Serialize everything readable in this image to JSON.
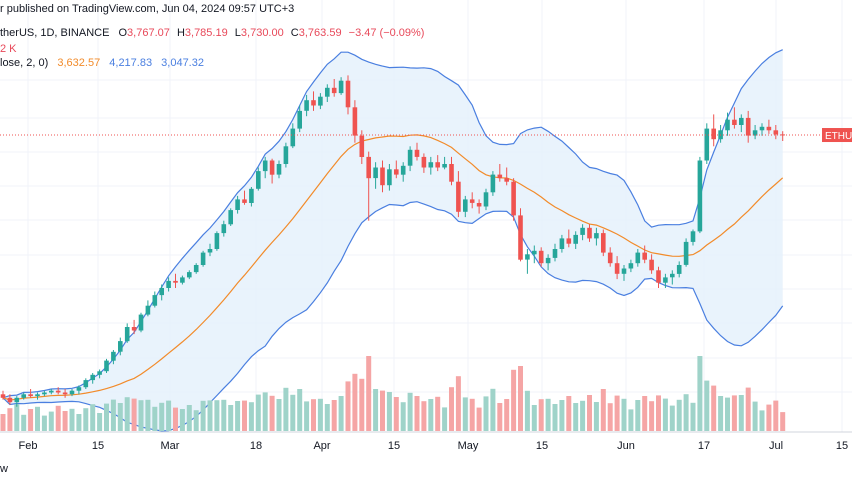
{
  "header": {
    "published": "r published on TradingView.com, Jun 04, 2024 09:57 UTC+3",
    "symbol_line": "therUS, 1D, BINANCE",
    "ohlc": {
      "o_label": "O",
      "o": "3,767.07",
      "h_label": "H",
      "h": "3,785.19",
      "l_label": "L",
      "l": "3,730.00",
      "c_label": "C",
      "c": "3,763.59",
      "chg": "−3.47 (−0.09%)"
    },
    "vol_value": "2 K",
    "bb_line": "lose, 2, 0)",
    "bb_values": {
      "basis": "3,632.57",
      "upper": "4,217.83",
      "lower": "3,047.32"
    }
  },
  "price_label": "ETHUS",
  "footer": "w",
  "colors": {
    "up": "#26a69a",
    "down": "#ef5350",
    "basis": "#f28b2a",
    "band": "#4a7fe0",
    "fill": "#e3f0fb",
    "vol_up": "#9fd3c9",
    "vol_down": "#f5a5a5"
  },
  "chart_data": {
    "type": "candlestick",
    "x_tick_labels": [
      "Feb",
      "15",
      "Mar",
      "18",
      "Apr",
      "15",
      "May",
      "15",
      "Jun",
      "17",
      "Jul",
      "15"
    ],
    "candles": [
      [
        2300,
        2320,
        2270,
        2280
      ],
      [
        2280,
        2300,
        2240,
        2255
      ],
      [
        2255,
        2290,
        2230,
        2280
      ],
      [
        2280,
        2310,
        2270,
        2300
      ],
      [
        2300,
        2330,
        2280,
        2290
      ],
      [
        2290,
        2310,
        2270,
        2300
      ],
      [
        2300,
        2320,
        2290,
        2310
      ],
      [
        2310,
        2330,
        2300,
        2320
      ],
      [
        2320,
        2340,
        2300,
        2310
      ],
      [
        2310,
        2330,
        2280,
        2300
      ],
      [
        2300,
        2330,
        2290,
        2320
      ],
      [
        2320,
        2350,
        2300,
        2340
      ],
      [
        2340,
        2390,
        2330,
        2380
      ],
      [
        2380,
        2420,
        2360,
        2410
      ],
      [
        2410,
        2440,
        2390,
        2430
      ],
      [
        2430,
        2500,
        2420,
        2490
      ],
      [
        2490,
        2550,
        2470,
        2540
      ],
      [
        2540,
        2620,
        2520,
        2600
      ],
      [
        2600,
        2700,
        2590,
        2680
      ],
      [
        2680,
        2720,
        2640,
        2660
      ],
      [
        2660,
        2760,
        2650,
        2750
      ],
      [
        2750,
        2830,
        2740,
        2800
      ],
      [
        2800,
        2880,
        2790,
        2860
      ],
      [
        2860,
        2920,
        2830,
        2900
      ],
      [
        2900,
        2960,
        2880,
        2940
      ],
      [
        2940,
        2980,
        2900,
        2930
      ],
      [
        2930,
        2970,
        2920,
        2960
      ],
      [
        2960,
        3000,
        2950,
        2990
      ],
      [
        2990,
        3040,
        2980,
        3030
      ],
      [
        3030,
        3110,
        3020,
        3100
      ],
      [
        3100,
        3150,
        3080,
        3120
      ],
      [
        3120,
        3220,
        3110,
        3210
      ],
      [
        3210,
        3280,
        3190,
        3260
      ],
      [
        3260,
        3350,
        3250,
        3340
      ],
      [
        3340,
        3420,
        3320,
        3400
      ],
      [
        3400,
        3450,
        3370,
        3380
      ],
      [
        3380,
        3470,
        3360,
        3460
      ],
      [
        3460,
        3580,
        3450,
        3560
      ],
      [
        3560,
        3640,
        3520,
        3620
      ],
      [
        3620,
        3630,
        3490,
        3540
      ],
      [
        3540,
        3620,
        3520,
        3600
      ],
      [
        3600,
        3720,
        3580,
        3700
      ],
      [
        3700,
        3830,
        3690,
        3800
      ],
      [
        3800,
        3930,
        3780,
        3900
      ],
      [
        3900,
        3990,
        3870,
        3960
      ],
      [
        3960,
        4010,
        3900,
        3930
      ],
      [
        3930,
        4000,
        3910,
        3980
      ],
      [
        3980,
        4050,
        3950,
        4030
      ],
      [
        4030,
        4080,
        3980,
        4000
      ],
      [
        4000,
        4090,
        3990,
        4070
      ],
      [
        4070,
        4100,
        3880,
        3920
      ],
      [
        3920,
        3960,
        3720,
        3760
      ],
      [
        3760,
        3790,
        3600,
        3640
      ],
      [
        3640,
        3670,
        3280,
        3520
      ],
      [
        3520,
        3610,
        3460,
        3580
      ],
      [
        3580,
        3620,
        3440,
        3480
      ],
      [
        3480,
        3600,
        3450,
        3570
      ],
      [
        3570,
        3620,
        3520,
        3540
      ],
      [
        3540,
        3610,
        3500,
        3590
      ],
      [
        3590,
        3700,
        3560,
        3680
      ],
      [
        3680,
        3720,
        3620,
        3640
      ],
      [
        3640,
        3660,
        3550,
        3580
      ],
      [
        3580,
        3640,
        3540,
        3610
      ],
      [
        3610,
        3650,
        3560,
        3580
      ],
      [
        3580,
        3640,
        3570,
        3600
      ],
      [
        3600,
        3640,
        3480,
        3500
      ],
      [
        3500,
        3560,
        3300,
        3330
      ],
      [
        3330,
        3420,
        3300,
        3400
      ],
      [
        3400,
        3440,
        3350,
        3380
      ],
      [
        3380,
        3400,
        3320,
        3360
      ],
      [
        3360,
        3460,
        3340,
        3440
      ],
      [
        3440,
        3560,
        3420,
        3540
      ],
      [
        3540,
        3600,
        3500,
        3520
      ],
      [
        3520,
        3580,
        3480,
        3500
      ],
      [
        3500,
        3520,
        3280,
        3310
      ],
      [
        3310,
        3350,
        3050,
        3060
      ],
      [
        3060,
        3120,
        2980,
        3090
      ],
      [
        3090,
        3140,
        3040,
        3110
      ],
      [
        3110,
        3130,
        3020,
        3040
      ],
      [
        3040,
        3090,
        3000,
        3070
      ],
      [
        3070,
        3150,
        3050,
        3120
      ],
      [
        3120,
        3200,
        3100,
        3180
      ],
      [
        3180,
        3230,
        3130,
        3150
      ],
      [
        3150,
        3220,
        3120,
        3200
      ],
      [
        3200,
        3260,
        3170,
        3240
      ],
      [
        3240,
        3260,
        3160,
        3180
      ],
      [
        3180,
        3240,
        3140,
        3210
      ],
      [
        3210,
        3230,
        3080,
        3100
      ],
      [
        3100,
        3130,
        3020,
        3040
      ],
      [
        3040,
        3080,
        2950,
        2980
      ],
      [
        2980,
        3030,
        2940,
        3010
      ],
      [
        3010,
        3060,
        2990,
        3040
      ],
      [
        3040,
        3120,
        3020,
        3100
      ],
      [
        3100,
        3140,
        3040,
        3060
      ],
      [
        3060,
        3090,
        2980,
        3000
      ],
      [
        3000,
        3020,
        2900,
        2930
      ],
      [
        2930,
        2980,
        2900,
        2960
      ],
      [
        2960,
        3000,
        2920,
        2980
      ],
      [
        2980,
        3050,
        2960,
        3030
      ],
      [
        3030,
        3180,
        3020,
        3160
      ],
      [
        3160,
        3230,
        3140,
        3220
      ],
      [
        3220,
        3640,
        3210,
        3620
      ],
      [
        3620,
        3830,
        3600,
        3800
      ],
      [
        3800,
        3880,
        3700,
        3740
      ],
      [
        3740,
        3820,
        3720,
        3790
      ],
      [
        3790,
        3890,
        3760,
        3850
      ],
      [
        3850,
        3920,
        3800,
        3820
      ],
      [
        3820,
        3880,
        3780,
        3860
      ],
      [
        3860,
        3900,
        3720,
        3760
      ],
      [
        3760,
        3820,
        3740,
        3790
      ],
      [
        3790,
        3830,
        3760,
        3810
      ],
      [
        3810,
        3850,
        3770,
        3790
      ],
      [
        3790,
        3820,
        3740,
        3767
      ],
      [
        3767,
        3785,
        3730,
        3764
      ]
    ],
    "bollinger": {
      "period": 20,
      "mult": 2,
      "basis_last": 3632.57,
      "upper_last": 4217.83,
      "lower_last": 3047.32
    },
    "last_price": 3763.59
  }
}
